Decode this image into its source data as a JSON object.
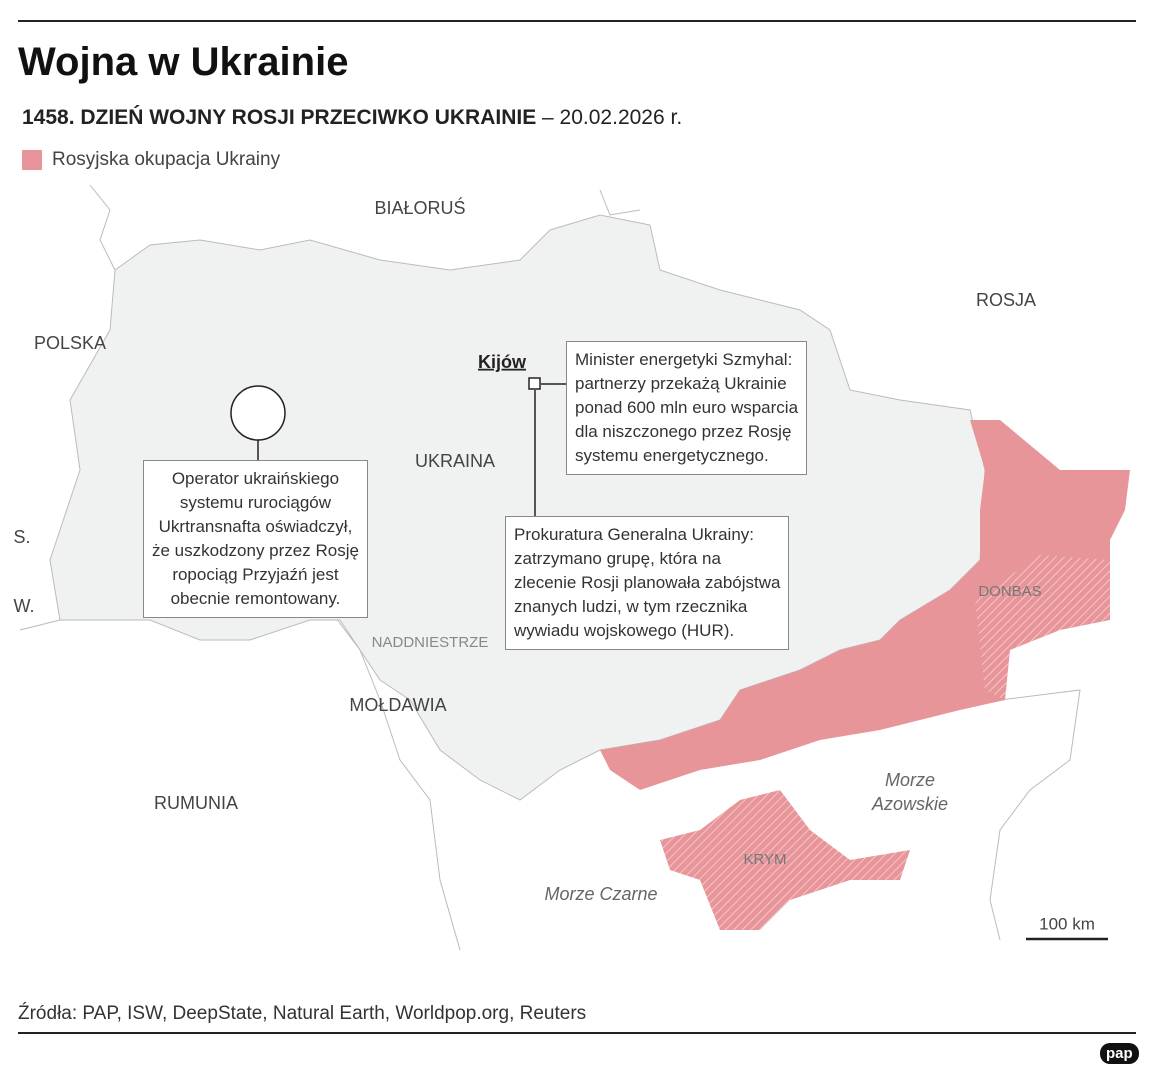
{
  "header": {
    "title": "Wojna w Ukrainie",
    "subtitle_bold": "1458. DZIEŃ WOJNY ROSJI PRZECIWKO UKRAINIE",
    "subtitle_date": "– 20.02.2026 r."
  },
  "legend": {
    "label": "Rosyjska okupacja Ukrainy",
    "color": "#e8959a"
  },
  "map": {
    "countries": [
      "BIAŁORUŚ",
      "ROSJA",
      "POLSKA",
      "UKRAINA",
      "S.",
      "W.",
      "MOŁDAWIA",
      "RUMUNIA"
    ],
    "regions": [
      "NADDNIESTRZE",
      "DONBAS",
      "KRYM"
    ],
    "seas": [
      [
        "Morze",
        "Azowskie"
      ],
      "Morze Czarne"
    ],
    "capital": "Kijów",
    "callouts": [
      [
        "Minister energetyki Szmyhal:",
        "partnerzy przekażą Ukrainie",
        "ponad 600 mln euro wsparcia",
        "dla niszczonego przez Rosję",
        "systemu energetycznego."
      ],
      [
        "Operator ukraińskiego",
        "systemu rurociągów",
        "Ukrtransnafta oświadczył,",
        "że uszkodzony przez Rosję",
        "ropociąg Przyjaźń jest",
        "obecnie remontowany."
      ],
      [
        "Prokuratura Generalna Ukrainy:",
        "zatrzymano grupę, która na",
        "zlecenie Rosji planowała zabójstwa",
        "znanych ludzi, w tym rzecznika",
        "wywiadu wojskowego (HUR)."
      ]
    ],
    "scale": "100 km"
  },
  "footer": {
    "sources": "Źródła: PAP, ISW, DeepState, Natural Earth, Worldpop.org, Reuters",
    "logo": "pap"
  }
}
